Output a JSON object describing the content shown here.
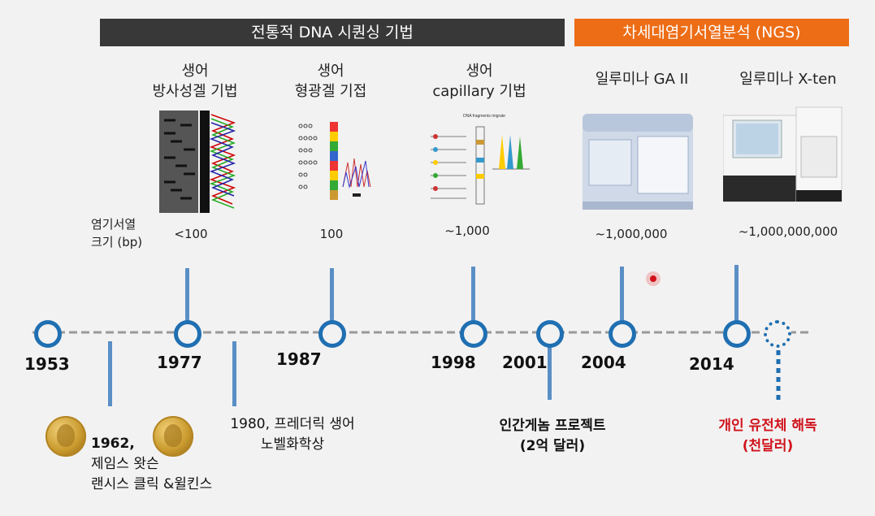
{
  "banners": {
    "traditional": "전통적 DNA 시퀀싱 기법",
    "ngs": "차세대염기서열분석 (NGS)"
  },
  "methods": [
    {
      "line1": "생어",
      "line2": "방사성겔 기법",
      "size": "<100"
    },
    {
      "line1": "생어",
      "line2": "형광겔 기접",
      "size": "100"
    },
    {
      "line1": "생어",
      "line2": "capillary 기법",
      "size": "~1,000"
    },
    {
      "line1": "일루미나 GA II",
      "size": "~1,000,000"
    },
    {
      "line1": "일루미나 X-ten",
      "size": "~1,000,000,000"
    }
  ],
  "size_label": {
    "line1": "염기서열",
    "line2": "크기 (bp)"
  },
  "years": [
    "1953",
    "1977",
    "1987",
    "1998",
    "2001",
    "2004",
    "2014"
  ],
  "events": {
    "e1962": {
      "year": "1962,",
      "line2": "제임스 왓슨",
      "line3": "랜시스 클릭 &윌킨스"
    },
    "e1980": {
      "line1": "1980, 프레더릭 생어",
      "line2": "노벨화학상"
    },
    "e2001": {
      "line1": "인간게놈 프로젝트",
      "line2": "(2억 달러)"
    },
    "future": {
      "line1": "개인 유전체 해독",
      "line2": "(천달러)"
    }
  },
  "colors": {
    "timeline_blue": "#1f6fb2",
    "connector_blue": "#5a8fc6",
    "ngs_orange": "#ed6d16",
    "trad_dark": "#383838",
    "highlight_red": "#d0121b"
  },
  "icons": [
    "gold-medal-icon",
    "gold-medal-icon",
    "gel-image",
    "fluorescent-gel-image",
    "capillary-diagram-image",
    "sequencer-ga2-image",
    "sequencer-xten-image"
  ]
}
